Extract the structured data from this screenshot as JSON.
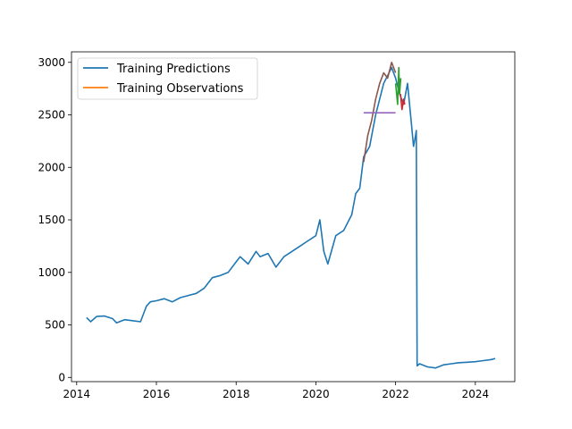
{
  "chart_data": {
    "type": "line",
    "title": "",
    "xlabel": "",
    "ylabel": "",
    "xlim": [
      2013.87,
      2024.99
    ],
    "ylim": [
      -40,
      3100
    ],
    "xticks": [
      2014,
      2016,
      2018,
      2020,
      2022,
      2024
    ],
    "yticks": [
      0,
      500,
      1000,
      1500,
      2000,
      2500,
      3000
    ],
    "grid": false,
    "legend_position": "upper-left",
    "legend": [
      {
        "label": "Training Predictions",
        "color": "#1f77b4"
      },
      {
        "label": "Training Observations",
        "color": "#ff7f0e"
      }
    ],
    "series": [
      {
        "name": "Training Predictions",
        "color": "#1f77b4",
        "x": [
          2014.25,
          2014.35,
          2014.5,
          2014.7,
          2014.9,
          2015.0,
          2015.2,
          2015.4,
          2015.6,
          2015.75,
          2015.85,
          2016.0,
          2016.2,
          2016.4,
          2016.6,
          2016.8,
          2017.0,
          2017.2,
          2017.4,
          2017.6,
          2017.8,
          2018.0,
          2018.1,
          2018.3,
          2018.5,
          2018.6,
          2018.8,
          2019.0,
          2019.2,
          2019.4,
          2019.6,
          2019.8,
          2020.0,
          2020.1,
          2020.2,
          2020.3,
          2020.5,
          2020.7,
          2020.9,
          2021.0,
          2021.1,
          2021.2,
          2021.35,
          2021.5,
          2021.7,
          2021.9,
          2022.0,
          2022.1,
          2022.2,
          2022.3,
          2022.4,
          2022.45,
          2022.5,
          2022.52,
          2022.54,
          2022.6,
          2022.8,
          2023.0,
          2023.2,
          2023.4,
          2023.6,
          2023.8,
          2024.0,
          2024.2,
          2024.4,
          2024.5
        ],
        "y": [
          570,
          530,
          580,
          585,
          560,
          520,
          550,
          540,
          530,
          680,
          720,
          730,
          750,
          720,
          760,
          780,
          800,
          850,
          950,
          970,
          1000,
          1100,
          1150,
          1080,
          1200,
          1150,
          1180,
          1050,
          1150,
          1200,
          1250,
          1300,
          1350,
          1500,
          1200,
          1080,
          1350,
          1400,
          1550,
          1750,
          1800,
          2100,
          2200,
          2500,
          2800,
          2950,
          2850,
          2700,
          2600,
          2800,
          2400,
          2200,
          2300,
          2350,
          110,
          130,
          100,
          90,
          120,
          130,
          140,
          145,
          150,
          160,
          170,
          180
        ]
      },
      {
        "name": "",
        "color": "#8c564b",
        "x": [
          2021.2,
          2021.3,
          2021.4,
          2021.5,
          2021.6,
          2021.7,
          2021.8,
          2021.9,
          2022.0
        ],
        "y": [
          2050,
          2300,
          2450,
          2650,
          2800,
          2900,
          2850,
          3000,
          2900
        ]
      },
      {
        "name": "",
        "color": "#9467bd",
        "x": [
          2021.2,
          2022.0
        ],
        "y": [
          2520,
          2520
        ]
      },
      {
        "name": "",
        "color": "#2ca02c",
        "x": [
          2022.0,
          2022.05,
          2022.08,
          2022.1,
          2022.13
        ],
        "y": [
          2800,
          2600,
          2950,
          2700,
          2850
        ]
      },
      {
        "name": "",
        "color": "#d62728",
        "x": [
          2022.12,
          2022.16,
          2022.2,
          2022.23
        ],
        "y": [
          2700,
          2550,
          2650,
          2600
        ]
      }
    ]
  }
}
